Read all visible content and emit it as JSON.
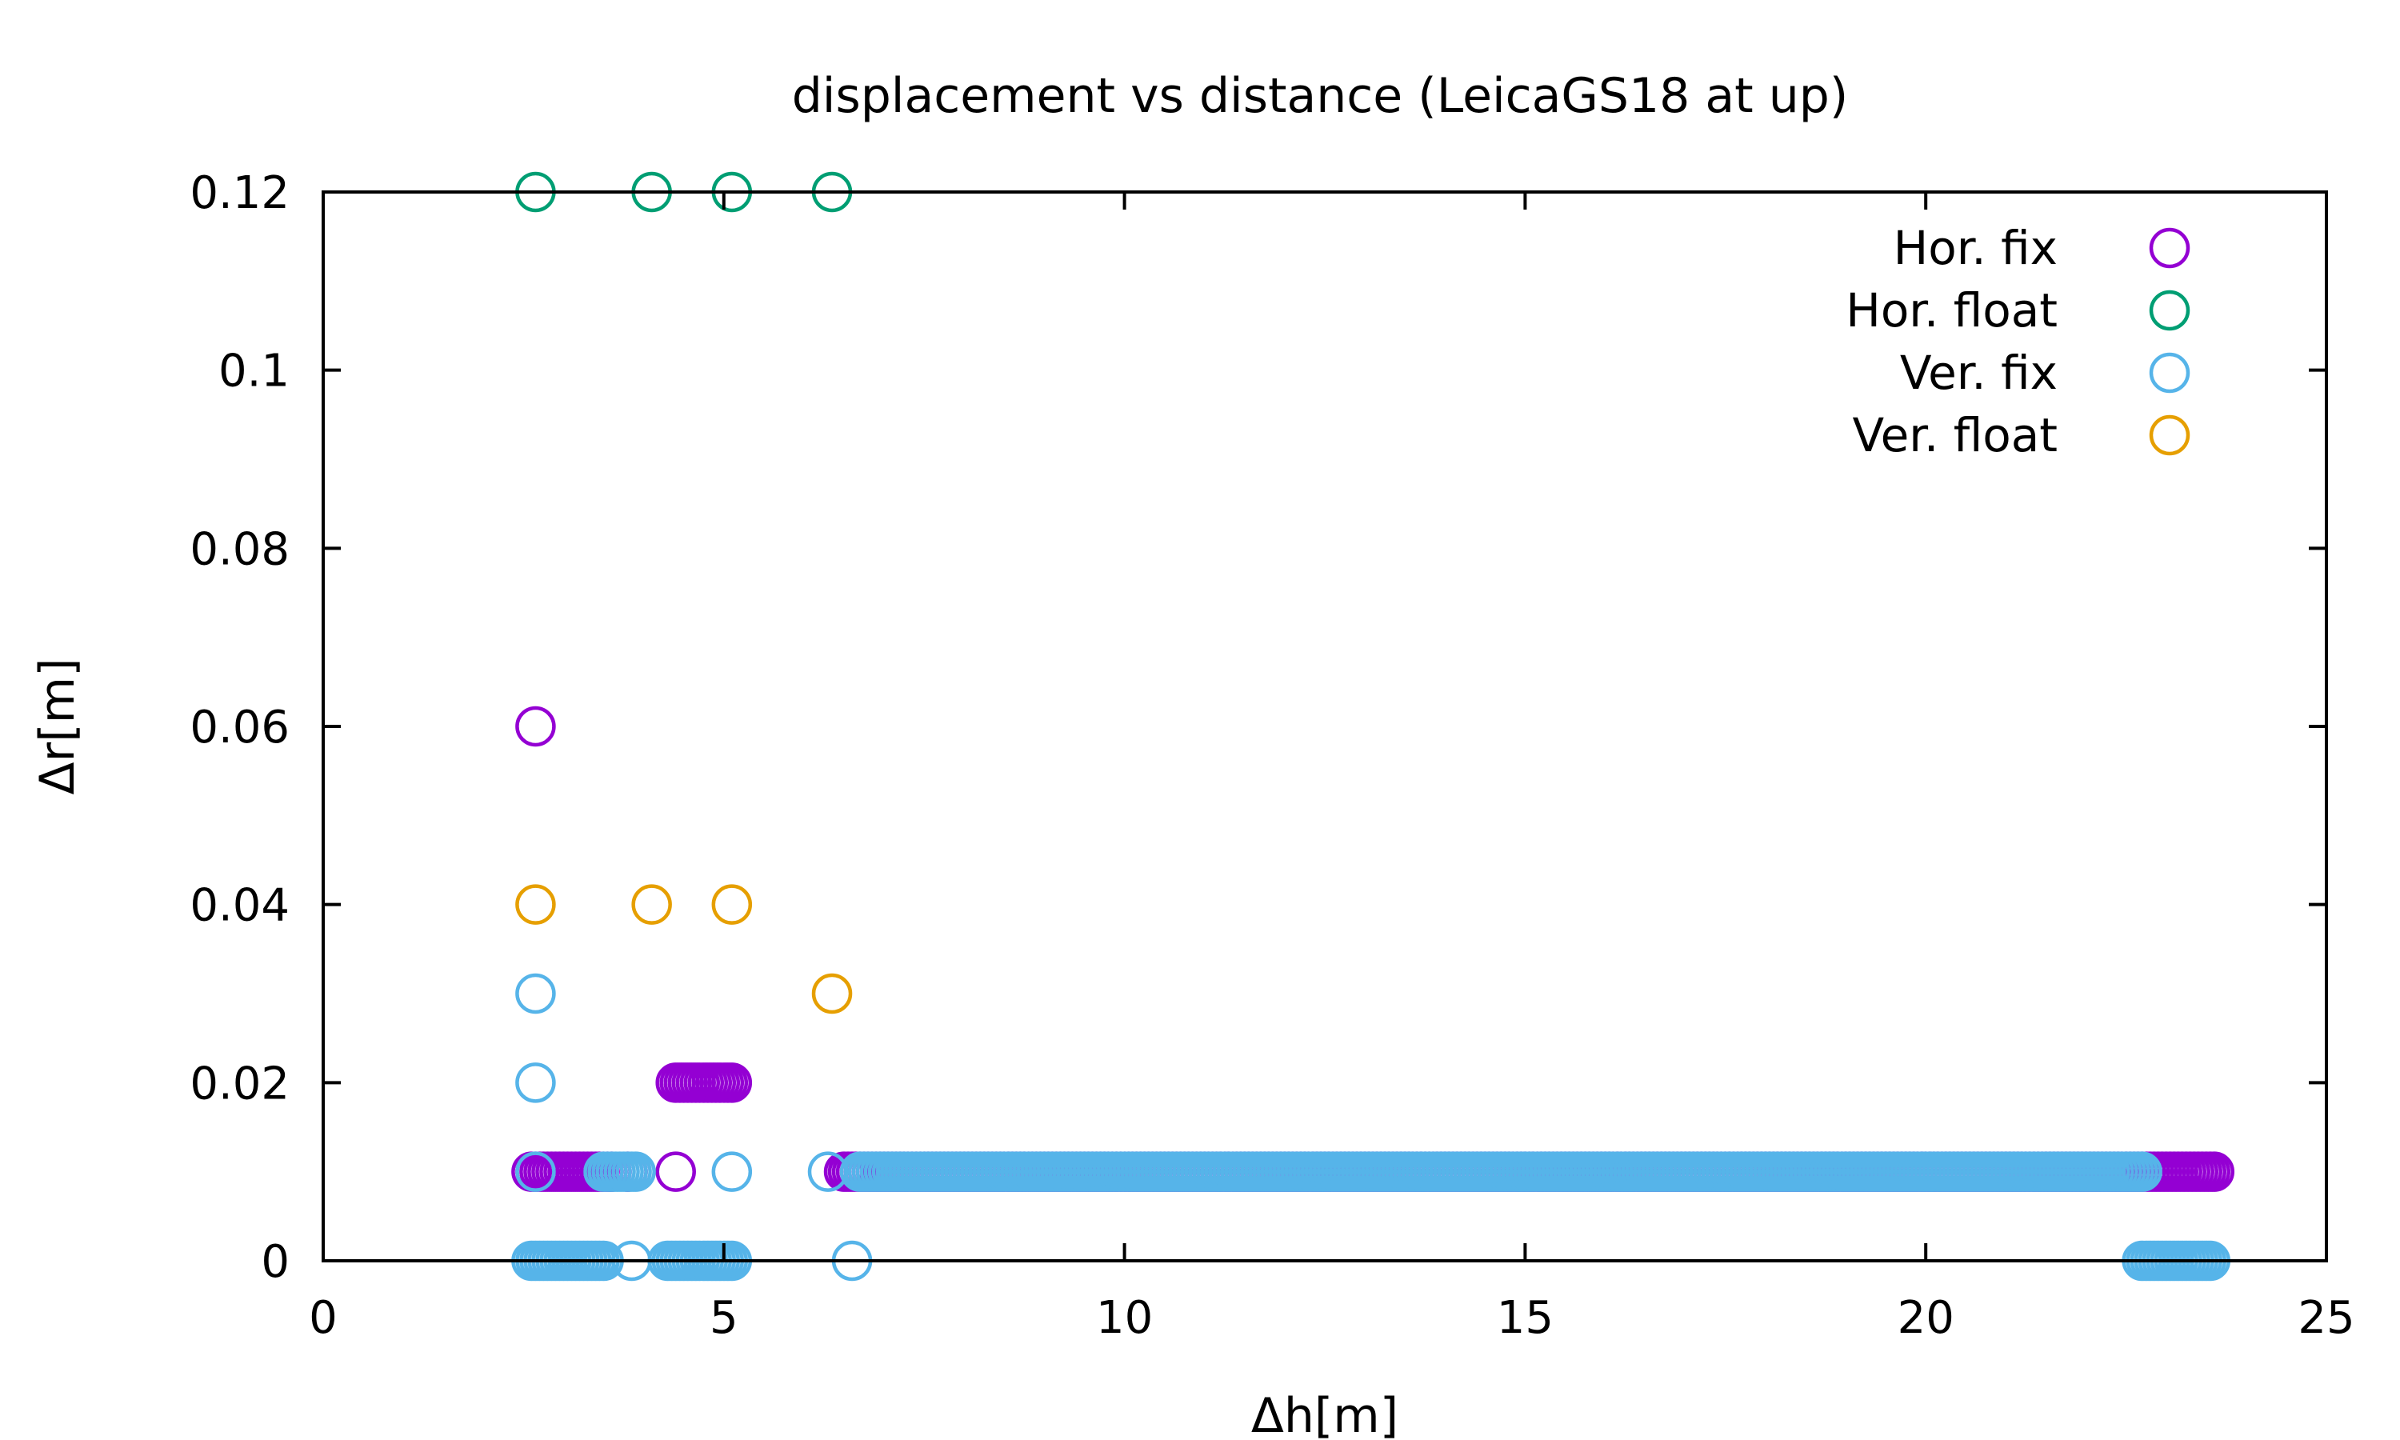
{
  "chart_data": {
    "type": "scatter",
    "title": "displacement vs distance (LeicaGS18 at up)",
    "xlabel": "Δh[m]",
    "ylabel": "Δr[m]",
    "xlim": [
      0,
      25
    ],
    "ylim": [
      0,
      0.12
    ],
    "x_ticks": [
      "0",
      "5",
      "10",
      "15",
      "20",
      "25"
    ],
    "y_ticks": [
      "0",
      "0.02",
      "0.04",
      "0.06",
      "0.08",
      "0.1",
      "0.12"
    ],
    "grid": false,
    "legend_position": "top-right",
    "marker": "open-circle",
    "series": [
      {
        "name": "Hor. fix",
        "color": "#9400d3",
        "points": [
          {
            "x_range": [
              2.6,
              3.6
            ],
            "step": 0.05,
            "y": 0.01
          },
          {
            "x": 3.8,
            "y": 0.01
          },
          {
            "x": 4.4,
            "y": 0.01
          },
          {
            "x_range": [
              4.4,
              5.1
            ],
            "step": 0.05,
            "y": 0.02
          },
          {
            "x_range": [
              6.5,
              23.6
            ],
            "step": 0.05,
            "y": 0.01
          },
          {
            "x": 2.65,
            "y": 0.06
          }
        ]
      },
      {
        "name": "Hor. float",
        "color": "#009e73",
        "points": [
          {
            "x": 2.65,
            "y": 0.12
          },
          {
            "x": 4.1,
            "y": 0.12
          },
          {
            "x": 5.1,
            "y": 0.12
          },
          {
            "x": 6.35,
            "y": 0.12
          }
        ]
      },
      {
        "name": "Ver. fix",
        "color": "#56b4e9",
        "points": [
          {
            "x": 2.65,
            "y": 0.03
          },
          {
            "x": 2.65,
            "y": 0.02
          },
          {
            "x": 2.65,
            "y": 0.01
          },
          {
            "x_range": [
              3.5,
              3.9
            ],
            "step": 0.05,
            "y": 0.01
          },
          {
            "x": 5.1,
            "y": 0.01
          },
          {
            "x": 6.3,
            "y": 0.01
          },
          {
            "x_range": [
              6.7,
              22.7
            ],
            "step": 0.05,
            "y": 0.01
          },
          {
            "x_range": [
              2.6,
              3.5
            ],
            "step": 0.05,
            "y": 0.0
          },
          {
            "x": 3.85,
            "y": 0.0
          },
          {
            "x_range": [
              4.3,
              5.1
            ],
            "step": 0.05,
            "y": 0.0
          },
          {
            "x": 6.6,
            "y": 0.0
          },
          {
            "x_range": [
              22.7,
              23.55
            ],
            "step": 0.05,
            "y": 0.0
          }
        ]
      },
      {
        "name": "Ver. float",
        "color": "#e69f00",
        "points": [
          {
            "x": 2.65,
            "y": 0.04
          },
          {
            "x": 4.1,
            "y": 0.04
          },
          {
            "x": 5.1,
            "y": 0.04
          },
          {
            "x": 6.35,
            "y": 0.03
          }
        ]
      }
    ]
  }
}
